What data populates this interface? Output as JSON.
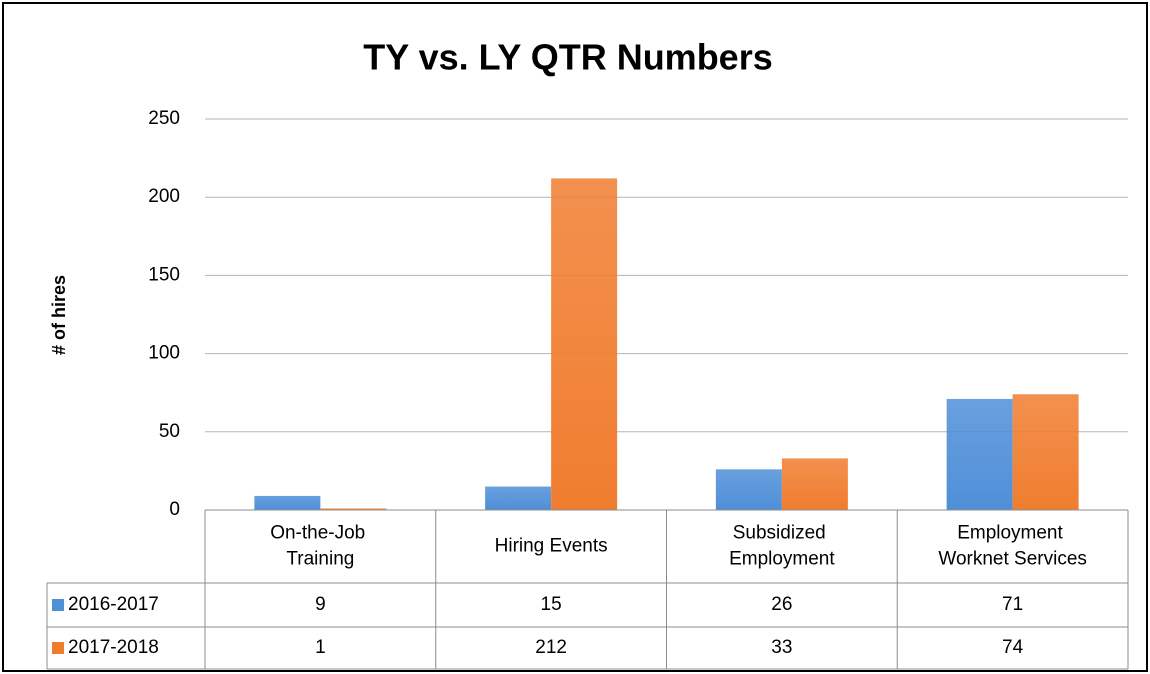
{
  "chart_data": {
    "type": "bar",
    "title": "TY vs. LY QTR Numbers",
    "y_label": "# of hires",
    "categories": [
      "On-the-Job Training",
      "Hiring Events",
      "Subsidized Employment",
      "Employment Worknet Services"
    ],
    "series": [
      {
        "name": "2016-2017",
        "color": "#4f8fd8",
        "values": [
          9,
          15,
          26,
          71
        ]
      },
      {
        "name": "2017-2018",
        "color": "#f07d2f",
        "values": [
          1,
          212,
          33,
          74
        ]
      }
    ],
    "ylim": [
      0,
      250
    ],
    "yticks": [
      0,
      50,
      100,
      150,
      200,
      250
    ],
    "grid": true,
    "data_table": true
  }
}
